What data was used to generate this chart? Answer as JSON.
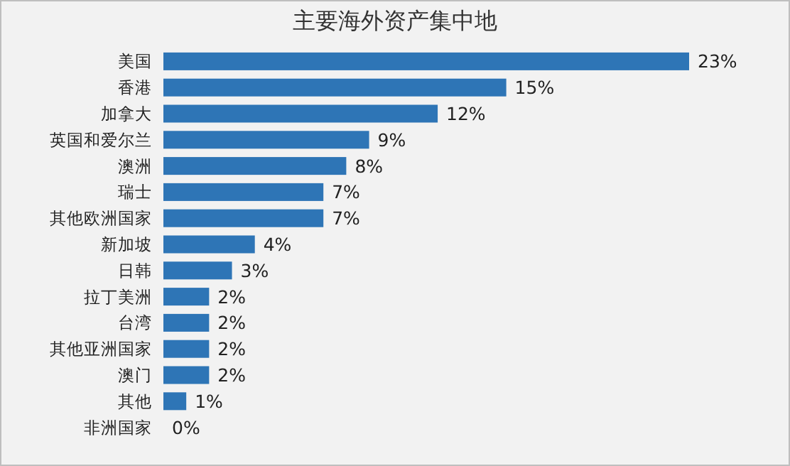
{
  "chart_data": {
    "type": "bar",
    "orientation": "horizontal",
    "title": "主要海外资产集中地",
    "categories": [
      "美国",
      "香港",
      "加拿大",
      "英国和爱尔兰",
      "澳洲",
      "瑞士",
      "其他欧洲国家",
      "新加坡",
      "日韩",
      "拉丁美洲",
      "台湾",
      "其他亚洲国家",
      "澳门",
      "其他",
      "非洲国家"
    ],
    "values": [
      23,
      15,
      12,
      9,
      8,
      7,
      7,
      4,
      3,
      2,
      2,
      2,
      2,
      1,
      0
    ],
    "value_labels": [
      "23%",
      "15%",
      "12%",
      "9%",
      "8%",
      "7%",
      "7%",
      "4%",
      "3%",
      "2%",
      "2%",
      "2%",
      "2%",
      "1%",
      "0%"
    ],
    "color": "#2e75b6"
  }
}
